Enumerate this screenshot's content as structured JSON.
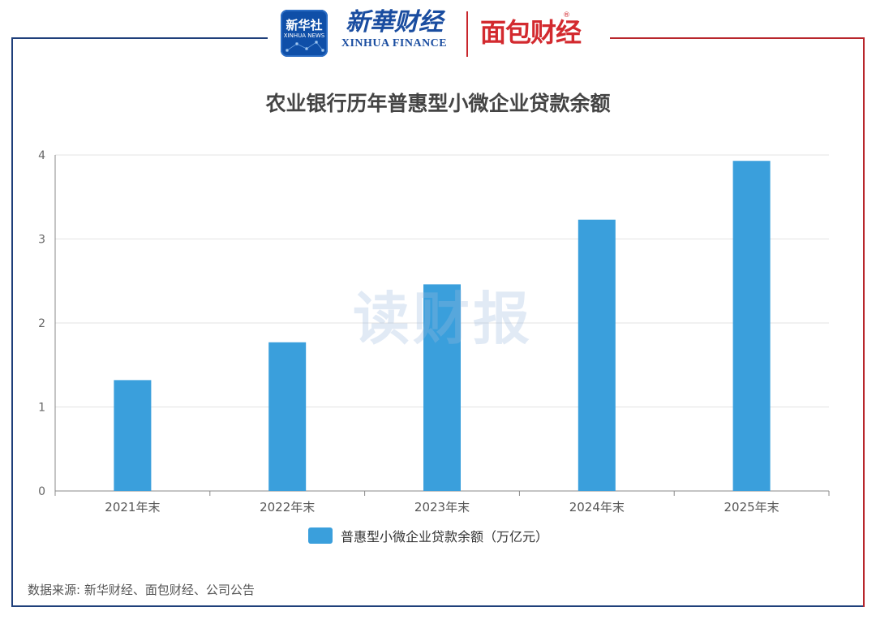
{
  "header": {
    "badge_main": "新华社",
    "badge_sub": "XINHUA NEWS",
    "brand_cn": "新華财经",
    "brand_en": "XINHUA FINANCE",
    "mianbao": "面包财经",
    "registered": "®"
  },
  "watermark": "读财报",
  "colors": {
    "bar": "#3a9fdc",
    "frame_left": "#1f3f7a",
    "frame_right": "#b8262c"
  },
  "chart_data": {
    "type": "bar",
    "title": "农业银行历年普惠型小微企业贷款余额",
    "categories": [
      "2021年末",
      "2022年末",
      "2023年末",
      "2024年末",
      "2025年末"
    ],
    "series": [
      {
        "name": "普惠型小微企业贷款余额（万亿元）",
        "values": [
          1.32,
          1.77,
          2.46,
          3.23,
          3.93
        ]
      }
    ],
    "y_ticks": [
      "0",
      "1",
      "2",
      "3",
      "4"
    ],
    "ylim": [
      0,
      4
    ],
    "grid": true,
    "legend_position": "bottom"
  },
  "footer": {
    "source": "数据来源: 新华财经、面包财经、公司公告"
  }
}
